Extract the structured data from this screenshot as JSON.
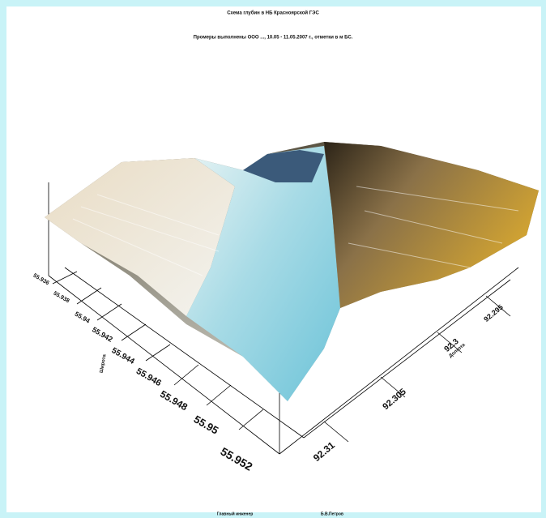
{
  "header": {
    "title": "Схема глубин в НБ Красноярской ГЭС",
    "subtitle": "Промеры выполнены ООО ..., 10.05 - 11.05.2007 г., отметки в м БС."
  },
  "axes": {
    "y_label": "Широта",
    "x_label": "Долгота",
    "y_ticks": [
      "55.936",
      "55.938",
      "55.94",
      "55.942",
      "55.944",
      "55.946",
      "55.948",
      "55.95",
      "55.952"
    ],
    "x_ticks": [
      "92.31",
      "92.305",
      "92.3",
      "92.295"
    ]
  },
  "footer": {
    "left": "Главный инженер",
    "right": "Б.В.Петров"
  }
}
